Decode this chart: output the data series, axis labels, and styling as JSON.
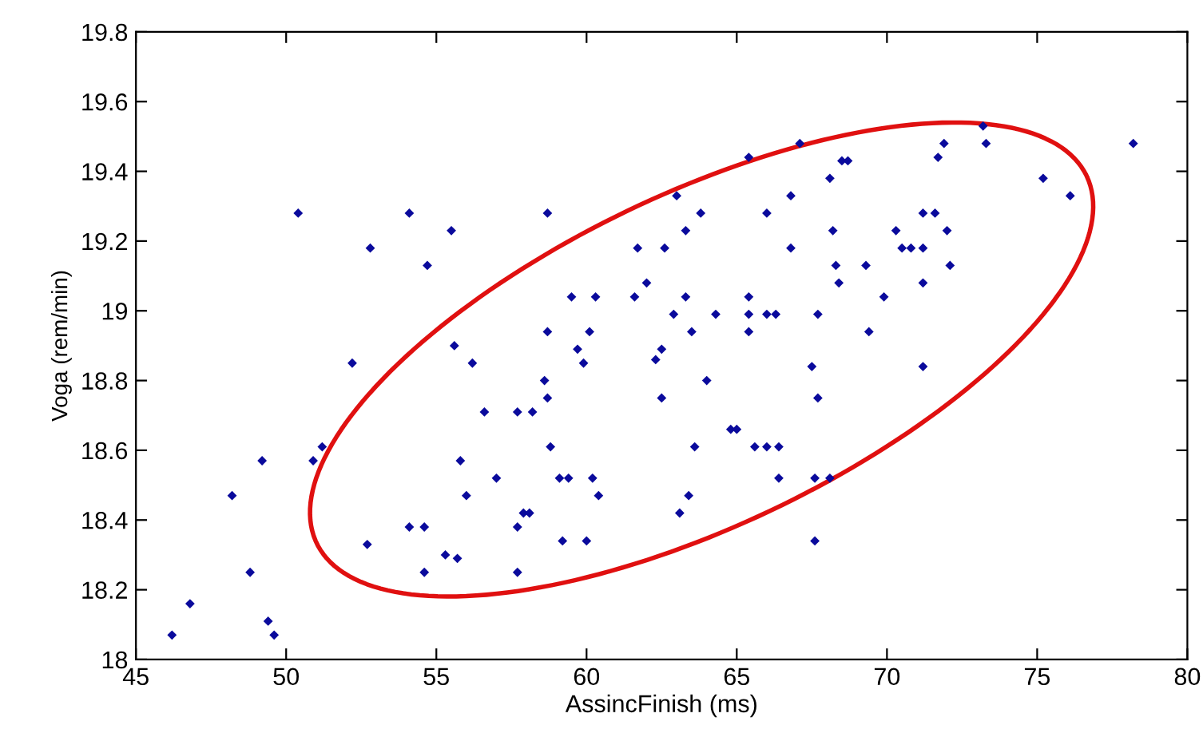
{
  "chart_data": {
    "type": "scatter",
    "xlabel": "AssincFinish (ms)",
    "ylabel": "Voga (rem/min)",
    "xlim": [
      45,
      80
    ],
    "xticks": [
      45,
      50,
      55,
      60,
      65,
      70,
      75,
      80
    ],
    "ylim": [
      18,
      19.8
    ],
    "yticks": [
      18,
      {
        "value": 18.2,
        "label": "18.2"
      },
      {
        "value": 18.4,
        "label": "18.4"
      },
      {
        "value": 18.6,
        "label": "18.6"
      },
      {
        "value": 18.8,
        "label": "18.8"
      },
      19,
      {
        "value": 19.2,
        "label": "19.2"
      },
      {
        "value": 19.4,
        "label": "19.4"
      },
      {
        "value": 19.6,
        "label": "19.6"
      },
      {
        "value": 19.8,
        "label": "19.8"
      }
    ],
    "grid": false,
    "marker": "diamond",
    "series": [
      {
        "color": "#0a0a9c",
        "x": [
          50.4,
          54.1,
          55.5,
          52.8,
          54.7,
          55.6,
          52.2,
          56.2,
          56.6,
          51.2,
          49.2,
          50.9,
          55.8,
          57.0,
          48.2,
          56.0,
          54.1,
          54.6,
          52.7,
          55.3,
          55.7,
          48.8,
          54.6,
          46.8,
          49.4,
          46.2,
          49.6,
          65.4,
          67.1,
          63.0,
          58.7,
          63.8,
          66.0,
          66.8,
          68.1,
          63.3,
          68.2,
          61.7,
          62.6,
          66.8,
          68.3,
          62.0,
          68.4,
          59.5,
          60.3,
          61.6,
          63.3,
          65.4,
          62.9,
          64.3,
          65.4,
          66.0,
          66.3,
          67.7,
          58.7,
          60.1,
          63.5,
          65.4,
          59.7,
          62.5,
          59.9,
          62.3,
          67.5,
          64.0,
          58.6,
          58.7,
          62.5,
          67.7,
          57.7,
          58.2,
          58.8,
          63.6,
          64.8,
          65.0,
          65.6,
          66.0,
          66.4,
          59.1,
          59.4,
          60.2,
          66.4,
          67.6,
          68.1,
          60.4,
          63.4,
          57.9,
          58.1,
          63.1,
          57.7,
          59.2,
          60.0,
          67.6,
          57.7,
          73.2,
          73.3,
          78.2,
          71.9,
          68.5,
          68.7,
          71.7,
          75.2,
          76.1,
          71.2,
          71.6,
          70.3,
          72.0,
          70.5,
          70.8,
          71.2,
          69.3,
          72.1,
          71.2,
          69.9,
          69.4,
          71.2
        ],
        "values": [
          19.28,
          19.28,
          19.23,
          19.18,
          19.13,
          18.9,
          18.85,
          18.85,
          18.71,
          18.61,
          18.57,
          18.57,
          18.57,
          18.52,
          18.47,
          18.47,
          18.38,
          18.38,
          18.33,
          18.3,
          18.29,
          18.25,
          18.25,
          18.16,
          18.11,
          18.07,
          18.07,
          19.44,
          19.48,
          19.33,
          19.28,
          19.28,
          19.28,
          19.33,
          19.38,
          19.23,
          19.23,
          19.18,
          19.18,
          19.18,
          19.13,
          19.08,
          19.08,
          19.04,
          19.04,
          19.04,
          19.04,
          19.04,
          18.99,
          18.99,
          18.99,
          18.99,
          18.99,
          18.99,
          18.94,
          18.94,
          18.94,
          18.94,
          18.89,
          18.89,
          18.85,
          18.86,
          18.84,
          18.8,
          18.8,
          18.75,
          18.75,
          18.75,
          18.71,
          18.71,
          18.61,
          18.61,
          18.66,
          18.66,
          18.61,
          18.61,
          18.61,
          18.52,
          18.52,
          18.52,
          18.52,
          18.52,
          18.52,
          18.47,
          18.47,
          18.42,
          18.42,
          18.42,
          18.38,
          18.34,
          18.34,
          18.34,
          18.25,
          19.53,
          19.48,
          19.48,
          19.48,
          19.43,
          19.43,
          19.44,
          19.38,
          19.33,
          19.28,
          19.28,
          19.23,
          19.23,
          19.18,
          19.18,
          19.18,
          19.13,
          19.13,
          19.08,
          19.04,
          18.94,
          18.84
        ]
      }
    ]
  }
}
